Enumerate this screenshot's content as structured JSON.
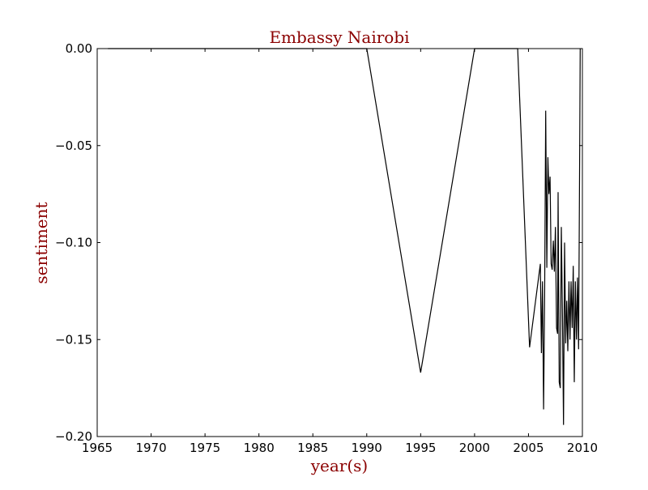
{
  "chart_data": {
    "type": "line",
    "title": "Embassy Nairobi",
    "xlabel": "year(s)",
    "ylabel": "sentiment",
    "xlim": [
      1965,
      2010
    ],
    "ylim": [
      -0.2,
      0.0
    ],
    "grid": false,
    "xticks": [
      1965,
      1970,
      1975,
      1980,
      1985,
      1990,
      1995,
      2000,
      2005,
      2010
    ],
    "xtick_labels": [
      "1965",
      "1970",
      "1975",
      "1980",
      "1985",
      "1990",
      "1995",
      "2000",
      "2005",
      "2010"
    ],
    "yticks": [
      0.0,
      -0.05,
      -0.1,
      -0.15,
      -0.2
    ],
    "ytick_labels": [
      "0.00",
      "−0.05",
      "−0.10",
      "−0.15",
      "−0.20"
    ],
    "series": [
      {
        "color": "#000000",
        "points": [
          [
            1966.0,
            0.0
          ],
          [
            1990.0,
            0.0
          ],
          [
            1995.0,
            -0.167
          ],
          [
            2000.0,
            0.0
          ],
          [
            2004.0,
            0.0
          ],
          [
            2005.1,
            -0.154
          ],
          [
            2006.1,
            -0.111
          ],
          [
            2006.2,
            -0.157
          ],
          [
            2006.3,
            -0.12
          ],
          [
            2006.4,
            -0.186
          ],
          [
            2006.5,
            -0.127
          ],
          [
            2006.6,
            -0.032
          ],
          [
            2006.7,
            -0.113
          ],
          [
            2006.8,
            -0.056
          ],
          [
            2006.9,
            -0.075
          ],
          [
            2007.0,
            -0.066
          ],
          [
            2007.1,
            -0.111
          ],
          [
            2007.2,
            -0.114
          ],
          [
            2007.3,
            -0.099
          ],
          [
            2007.4,
            -0.115
          ],
          [
            2007.5,
            -0.092
          ],
          [
            2007.6,
            -0.144
          ],
          [
            2007.7,
            -0.147
          ],
          [
            2007.75,
            -0.074
          ],
          [
            2007.85,
            -0.172
          ],
          [
            2007.95,
            -0.175
          ],
          [
            2008.05,
            -0.092
          ],
          [
            2008.15,
            -0.138
          ],
          [
            2008.25,
            -0.194
          ],
          [
            2008.35,
            -0.1
          ],
          [
            2008.45,
            -0.152
          ],
          [
            2008.55,
            -0.13
          ],
          [
            2008.65,
            -0.156
          ],
          [
            2008.75,
            -0.12
          ],
          [
            2008.85,
            -0.15
          ],
          [
            2008.95,
            -0.12
          ],
          [
            2009.05,
            -0.144
          ],
          [
            2009.15,
            -0.112
          ],
          [
            2009.25,
            -0.172
          ],
          [
            2009.35,
            -0.12
          ],
          [
            2009.45,
            -0.15
          ],
          [
            2009.55,
            -0.118
          ],
          [
            2009.65,
            -0.155
          ],
          [
            2009.75,
            -0.05
          ],
          [
            2009.8,
            0.0
          ]
        ]
      }
    ],
    "colors": {
      "title": "#8b0000",
      "axis_label": "#8b0000",
      "line": "#000000"
    }
  }
}
